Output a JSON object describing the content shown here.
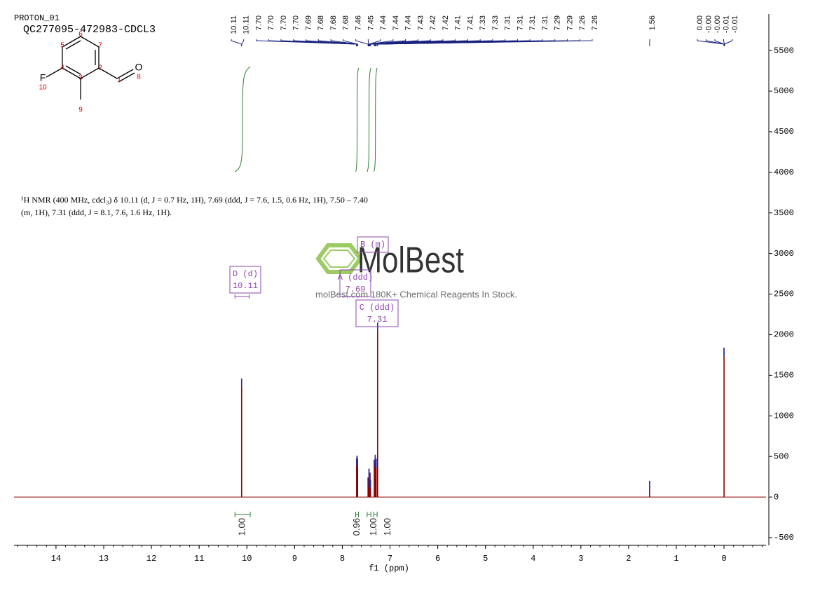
{
  "chart_data": {
    "type": "nmr",
    "title": "PROTON_01",
    "subtitle": "QC277095-472983-CDCL3",
    "x_label": "f1 (ppm)",
    "xlim": [
      14.88,
      -0.88
    ],
    "xticks": [
      14,
      13,
      12,
      11,
      10,
      9,
      8,
      7,
      6,
      5,
      4,
      3,
      2,
      1,
      0
    ],
    "ylim": [
      -595,
      5950
    ],
    "yticks": [
      -500,
      0,
      500,
      1000,
      1500,
      2000,
      2500,
      3000,
      3500,
      4000,
      4500,
      5000,
      5500
    ],
    "color": "#8b0000",
    "peaks": {
      "x": [
        10.11,
        7.7,
        7.69,
        7.68,
        7.46,
        7.44,
        7.42,
        7.41,
        7.33,
        7.31,
        7.29,
        7.26,
        1.56,
        0.0
      ],
      "values": [
        1460,
        480,
        510,
        470,
        240,
        350,
        300,
        210,
        460,
        520,
        470,
        2150,
        200,
        1840
      ]
    },
    "peak_label_groups": [
      {
        "labels": [
          {
            "value": 10.11,
            "label": "10.11"
          },
          {
            "value": 10.11,
            "label": "10.11"
          },
          {
            "value": 7.7,
            "label": "7.70"
          },
          {
            "value": 7.7,
            "label": "7.70"
          },
          {
            "value": 7.7,
            "label": "7.70"
          },
          {
            "value": 7.7,
            "label": "7.70"
          },
          {
            "value": 7.69,
            "label": "7.69"
          },
          {
            "value": 7.68,
            "label": "7.68"
          },
          {
            "value": 7.68,
            "label": "7.68"
          },
          {
            "value": 7.68,
            "label": "7.68"
          },
          {
            "value": 7.46,
            "label": "7.46"
          },
          {
            "value": 7.45,
            "label": "7.45"
          },
          {
            "value": 7.44,
            "label": "7.44"
          },
          {
            "value": 7.44,
            "label": "7.44"
          },
          {
            "value": 7.44,
            "label": "7.44"
          },
          {
            "value": 7.43,
            "label": "7.43"
          },
          {
            "value": 7.42,
            "label": "7.42"
          },
          {
            "value": 7.42,
            "label": "7.42"
          },
          {
            "value": 7.41,
            "label": "7.41"
          },
          {
            "value": 7.41,
            "label": "7.41"
          },
          {
            "value": 7.33,
            "label": "7.33"
          },
          {
            "value": 7.33,
            "label": "7.33"
          },
          {
            "value": 7.31,
            "label": "7.31"
          },
          {
            "value": 7.31,
            "label": "7.31"
          },
          {
            "value": 7.31,
            "label": "7.31"
          },
          {
            "value": 7.31,
            "label": "7.31"
          },
          {
            "value": 7.29,
            "label": "7.29"
          },
          {
            "value": 7.29,
            "label": "7.29"
          },
          {
            "value": 7.26,
            "label": "7.26"
          },
          {
            "value": 7.26,
            "label": "7.26"
          }
        ]
      },
      {
        "labels": [
          {
            "value": 1.56,
            "label": "1.56"
          }
        ]
      },
      {
        "labels": [
          {
            "value": 0.0,
            "label": "0.00"
          },
          {
            "value": 0.0,
            "label": "-0.00"
          },
          {
            "value": 0.0,
            "label": "-0.00"
          },
          {
            "value": -0.01,
            "label": "-0.01"
          },
          {
            "value": -0.01,
            "label": "-0.01"
          }
        ]
      }
    ],
    "integrals": [
      {
        "range": [
          10.25,
          9.93
        ],
        "value": 1.0,
        "label": "1.00"
      },
      {
        "range": [
          7.72,
          7.66
        ],
        "value": 0.96,
        "label": "0.96"
      },
      {
        "range": [
          7.48,
          7.4
        ],
        "value": 1.0,
        "label": "1.00"
      },
      {
        "range": [
          7.34,
          7.27
        ],
        "value": 1.0,
        "label": "1.00"
      }
    ],
    "multiplets": [
      {
        "name": "D (d)",
        "shift": "10.11"
      },
      {
        "name": "A (ddd)",
        "shift": "7.69"
      },
      {
        "name": "B (m)"
      },
      {
        "name": "C (ddd)",
        "shift": "7.31"
      }
    ],
    "description": [
      "¹H NMR (400 MHz, cdcl₃) δ 10.11 (d, J = 0.7 Hz, 1H), 7.69 (ddd, J = 7.6, 1.5, 0.6 Hz, 1H), 7.50 – 7.40",
      "(m, 1H), 7.31 (ddd, J = 8.1, 7.6, 1.6 Hz, 1H)."
    ],
    "watermark": {
      "brand": "MolBest",
      "tagline": "molBest.com 180K+ Chemical Reagents In Stock."
    },
    "molecule": {
      "atoms": [
        "F",
        "10",
        "4",
        "5",
        "6",
        "7",
        "2",
        "3",
        "1",
        "O",
        "8",
        "9"
      ]
    }
  }
}
